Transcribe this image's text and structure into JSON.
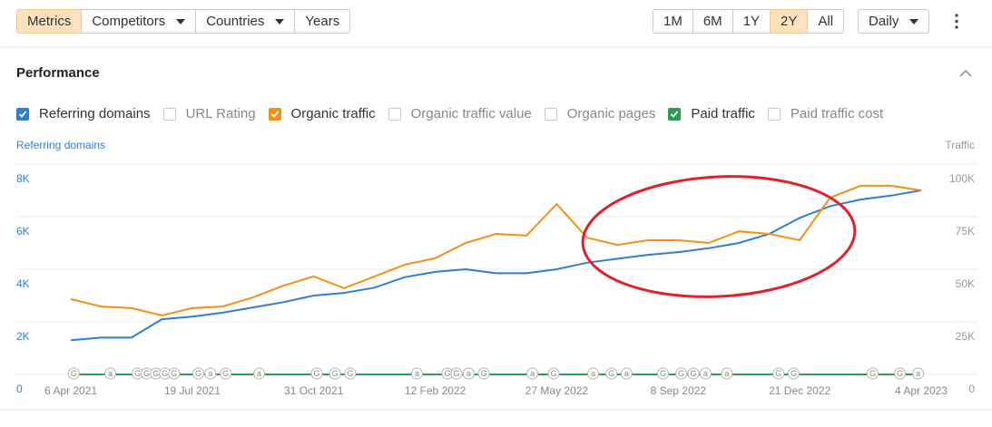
{
  "toolbar": {
    "tabs": [
      {
        "label": "Metrics",
        "active": true,
        "dropdown": false
      },
      {
        "label": "Competitors",
        "active": false,
        "dropdown": true
      },
      {
        "label": "Countries",
        "active": false,
        "dropdown": true
      },
      {
        "label": "Years",
        "active": false,
        "dropdown": false
      }
    ],
    "ranges": [
      {
        "label": "1M",
        "active": false
      },
      {
        "label": "6M",
        "active": false
      },
      {
        "label": "1Y",
        "active": false
      },
      {
        "label": "2Y",
        "active": true
      },
      {
        "label": "All",
        "active": false
      }
    ],
    "interval": "Daily"
  },
  "section": {
    "title": "Performance"
  },
  "metrics": [
    {
      "label": "Referring domains",
      "checked": true,
      "color": "#2f7fd1"
    },
    {
      "label": "URL Rating",
      "checked": false
    },
    {
      "label": "Organic traffic",
      "checked": true,
      "color": "#f39019"
    },
    {
      "label": "Organic traffic value",
      "checked": false
    },
    {
      "label": "Organic pages",
      "checked": false
    },
    {
      "label": "Paid traffic",
      "checked": true,
      "color": "#2e9e4e"
    },
    {
      "label": "Paid traffic cost",
      "checked": false
    }
  ],
  "chart_data": {
    "type": "line",
    "y_label": "Referring domains",
    "y2_label": "Traffic",
    "x": [
      "6 Apr 2021",
      null,
      null,
      null,
      "19 Jul 2021",
      null,
      null,
      null,
      "31 Oct 2021",
      null,
      null,
      null,
      "12 Feb 2022",
      null,
      null,
      null,
      "27 May 2022",
      null,
      null,
      null,
      "8 Sep 2022",
      null,
      null,
      null,
      "21 Dec 2022",
      null,
      null,
      null,
      "4 Apr 2023"
    ],
    "ylim": [
      0,
      8000
    ],
    "yticks": [
      0,
      {
        "value": 2000,
        "label": "2K"
      },
      {
        "value": 4000,
        "label": "4K"
      },
      {
        "value": 6000,
        "label": "6K"
      },
      {
        "value": 8000,
        "label": "8K"
      }
    ],
    "y2lim": [
      0,
      100000
    ],
    "y2ticks": [
      0,
      {
        "value": 25000,
        "label": "25K"
      },
      {
        "value": 50000,
        "label": "50K"
      },
      {
        "value": 75000,
        "label": "75K"
      },
      {
        "value": 100000,
        "label": "100K"
      }
    ],
    "grid": true,
    "series": [
      {
        "name": "Referring domains",
        "color": "#2f7fd1",
        "values": [
          1300,
          1400,
          1400,
          2100,
          2200,
          2350,
          2550,
          2750,
          3000,
          3100,
          3300,
          3700,
          3900,
          4000,
          3850,
          3850,
          4000,
          4250,
          4400,
          4550,
          4650,
          4800,
          5000,
          5350,
          5950,
          6400,
          6650,
          6800,
          7000
        ]
      },
      {
        "name": "Organic traffic",
        "color": "#f39019",
        "axis": "y2",
        "values": [
          35800,
          32300,
          31500,
          28000,
          31500,
          32300,
          36600,
          42200,
          46600,
          41000,
          46600,
          52200,
          55200,
          62500,
          66800,
          66000,
          81000,
          65000,
          61600,
          63800,
          63800,
          62500,
          68000,
          66800,
          63800,
          84000,
          89700,
          89700,
          87500
        ]
      },
      {
        "name": "Paid traffic",
        "color": "#2e9e4e",
        "axis": "y2",
        "values": [
          0,
          0,
          0,
          0,
          0,
          0,
          0,
          0,
          0,
          0,
          0,
          0,
          0,
          0,
          0,
          0,
          0,
          0,
          0,
          0,
          0,
          0,
          0,
          0,
          0,
          0,
          0,
          0,
          0
        ]
      }
    ],
    "event_markers": [
      {
        "label": "G",
        "x": 0.1
      },
      {
        "label": "a",
        "x": 1.3
      },
      {
        "label": "G",
        "x": 2.2
      },
      {
        "label": "G",
        "x": 2.5
      },
      {
        "label": "G",
        "x": 2.8
      },
      {
        "label": "G",
        "x": 3.1
      },
      {
        "label": "G",
        "x": 3.4
      },
      {
        "label": "G",
        "x": 4.2
      },
      {
        "label": "a",
        "x": 4.6
      },
      {
        "label": "G",
        "x": 5.1
      },
      {
        "label": "a",
        "x": 6.2
      },
      {
        "label": "G",
        "x": 8.1
      },
      {
        "label": "G",
        "x": 8.7
      },
      {
        "label": "G",
        "x": 9.2
      },
      {
        "label": "a",
        "x": 11.4
      },
      {
        "label": "G",
        "x": 12.4
      },
      {
        "label": "G",
        "x": 12.7
      },
      {
        "label": "a",
        "x": 13.1
      },
      {
        "label": "G",
        "x": 13.6
      },
      {
        "label": "a",
        "x": 15.2
      },
      {
        "label": "G",
        "x": 15.9
      },
      {
        "label": "a",
        "x": 17.2
      },
      {
        "label": "G",
        "x": 17.8
      },
      {
        "label": "a",
        "x": 18.3
      },
      {
        "label": "G",
        "x": 19.5
      },
      {
        "label": "G",
        "x": 20.1
      },
      {
        "label": "G",
        "x": 20.5
      },
      {
        "label": "a",
        "x": 20.9
      },
      {
        "label": "a",
        "x": 21.6
      },
      {
        "label": "G",
        "x": 23.3
      },
      {
        "label": "G",
        "x": 23.8
      },
      {
        "label": "G",
        "x": 26.4
      },
      {
        "label": "G",
        "x": 27.3
      },
      {
        "label": "a",
        "x": 27.9
      }
    ]
  }
}
